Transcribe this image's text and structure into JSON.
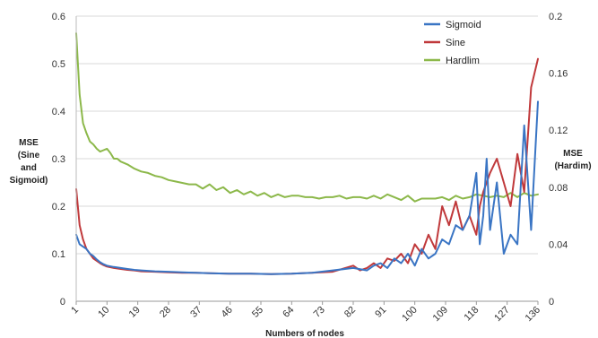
{
  "chart_data": {
    "type": "line",
    "xlabel": "Numbers of nodes",
    "ylabel_left_lines": [
      "MSE",
      "(Sine",
      "and",
      "Sigmoid)"
    ],
    "ylabel_right_lines": [
      "MSE",
      "(Hardim)"
    ],
    "x_tick_labels": [
      "1",
      "10",
      "19",
      "28",
      "37",
      "46",
      "55",
      "64",
      "73",
      "82",
      "91",
      "100",
      "109",
      "118",
      "127",
      "136"
    ],
    "y_left": {
      "ylim": [
        0,
        0.6
      ],
      "ticks": [
        "0",
        "0.1",
        "0.2",
        "0.3",
        "0.4",
        "0.5",
        "0.6"
      ]
    },
    "y_right": {
      "ylim": [
        0,
        0.2
      ],
      "ticks": [
        "0",
        "0.04",
        "0.08",
        "0.12",
        "0.16",
        "0.2"
      ]
    },
    "grid": "horizontal",
    "legend_position": "top-right",
    "xlim": [
      1,
      136
    ],
    "series": [
      {
        "name": "Sigmoid",
        "color": "#3a75c4",
        "axis": "left",
        "x": [
          1,
          2,
          3,
          4,
          5,
          6,
          7,
          8,
          9,
          10,
          12,
          14,
          16,
          18,
          20,
          24,
          28,
          32,
          36,
          40,
          46,
          52,
          58,
          64,
          70,
          76,
          82,
          86,
          88,
          90,
          92,
          94,
          96,
          98,
          100,
          102,
          104,
          106,
          108,
          110,
          112,
          114,
          116,
          118,
          119,
          120,
          121,
          122,
          124,
          126,
          128,
          130,
          132,
          134,
          136
        ],
        "values": [
          0.14,
          0.12,
          0.115,
          0.11,
          0.1,
          0.095,
          0.088,
          0.082,
          0.078,
          0.075,
          0.072,
          0.07,
          0.068,
          0.066,
          0.065,
          0.063,
          0.062,
          0.061,
          0.06,
          0.059,
          0.058,
          0.058,
          0.057,
          0.058,
          0.06,
          0.065,
          0.07,
          0.065,
          0.075,
          0.08,
          0.07,
          0.09,
          0.08,
          0.1,
          0.075,
          0.11,
          0.09,
          0.1,
          0.13,
          0.12,
          0.16,
          0.15,
          0.18,
          0.27,
          0.12,
          0.18,
          0.3,
          0.15,
          0.25,
          0.1,
          0.14,
          0.12,
          0.37,
          0.15,
          0.42
        ]
      },
      {
        "name": "Sine",
        "color": "#c0393b",
        "axis": "left",
        "x": [
          1,
          2,
          3,
          4,
          5,
          6,
          7,
          8,
          9,
          10,
          12,
          14,
          16,
          18,
          20,
          24,
          28,
          32,
          36,
          40,
          46,
          52,
          58,
          64,
          70,
          76,
          82,
          84,
          86,
          88,
          90,
          92,
          94,
          96,
          98,
          100,
          102,
          104,
          106,
          108,
          110,
          112,
          114,
          116,
          118,
          119,
          120,
          122,
          124,
          126,
          128,
          130,
          132,
          134,
          136
        ],
        "values": [
          0.236,
          0.16,
          0.13,
          0.11,
          0.1,
          0.09,
          0.085,
          0.08,
          0.076,
          0.073,
          0.07,
          0.068,
          0.066,
          0.065,
          0.063,
          0.062,
          0.061,
          0.06,
          0.06,
          0.059,
          0.058,
          0.058,
          0.057,
          0.058,
          0.06,
          0.062,
          0.075,
          0.065,
          0.07,
          0.08,
          0.07,
          0.09,
          0.085,
          0.1,
          0.08,
          0.12,
          0.1,
          0.14,
          0.11,
          0.2,
          0.16,
          0.21,
          0.15,
          0.18,
          0.14,
          0.2,
          0.23,
          0.27,
          0.3,
          0.25,
          0.2,
          0.31,
          0.23,
          0.45,
          0.51
        ]
      },
      {
        "name": "Hardlim",
        "color": "#8cb84a",
        "axis": "right",
        "x": [
          1,
          2,
          3,
          4,
          5,
          6,
          7,
          8,
          9,
          10,
          11,
          12,
          13,
          14,
          15,
          16,
          18,
          20,
          22,
          24,
          26,
          28,
          30,
          32,
          34,
          36,
          38,
          40,
          42,
          44,
          46,
          48,
          50,
          52,
          54,
          56,
          58,
          60,
          62,
          64,
          66,
          68,
          70,
          72,
          74,
          76,
          78,
          80,
          82,
          84,
          86,
          88,
          90,
          92,
          94,
          96,
          98,
          100,
          102,
          104,
          106,
          108,
          110,
          112,
          114,
          116,
          118,
          120,
          122,
          124,
          126,
          128,
          130,
          132,
          134,
          136
        ],
        "values": [
          0.188,
          0.145,
          0.125,
          0.118,
          0.112,
          0.11,
          0.107,
          0.105,
          0.106,
          0.107,
          0.104,
          0.1,
          0.1,
          0.098,
          0.097,
          0.096,
          0.093,
          0.091,
          0.09,
          0.088,
          0.087,
          0.085,
          0.084,
          0.083,
          0.082,
          0.082,
          0.079,
          0.082,
          0.078,
          0.08,
          0.076,
          0.078,
          0.075,
          0.077,
          0.074,
          0.076,
          0.073,
          0.075,
          0.073,
          0.074,
          0.074,
          0.073,
          0.073,
          0.072,
          0.073,
          0.073,
          0.074,
          0.072,
          0.073,
          0.073,
          0.072,
          0.074,
          0.072,
          0.075,
          0.073,
          0.071,
          0.074,
          0.07,
          0.072,
          0.072,
          0.072,
          0.073,
          0.071,
          0.074,
          0.072,
          0.073,
          0.075,
          0.074,
          0.073,
          0.074,
          0.073,
          0.076,
          0.073,
          0.076,
          0.074,
          0.075
        ]
      }
    ]
  }
}
